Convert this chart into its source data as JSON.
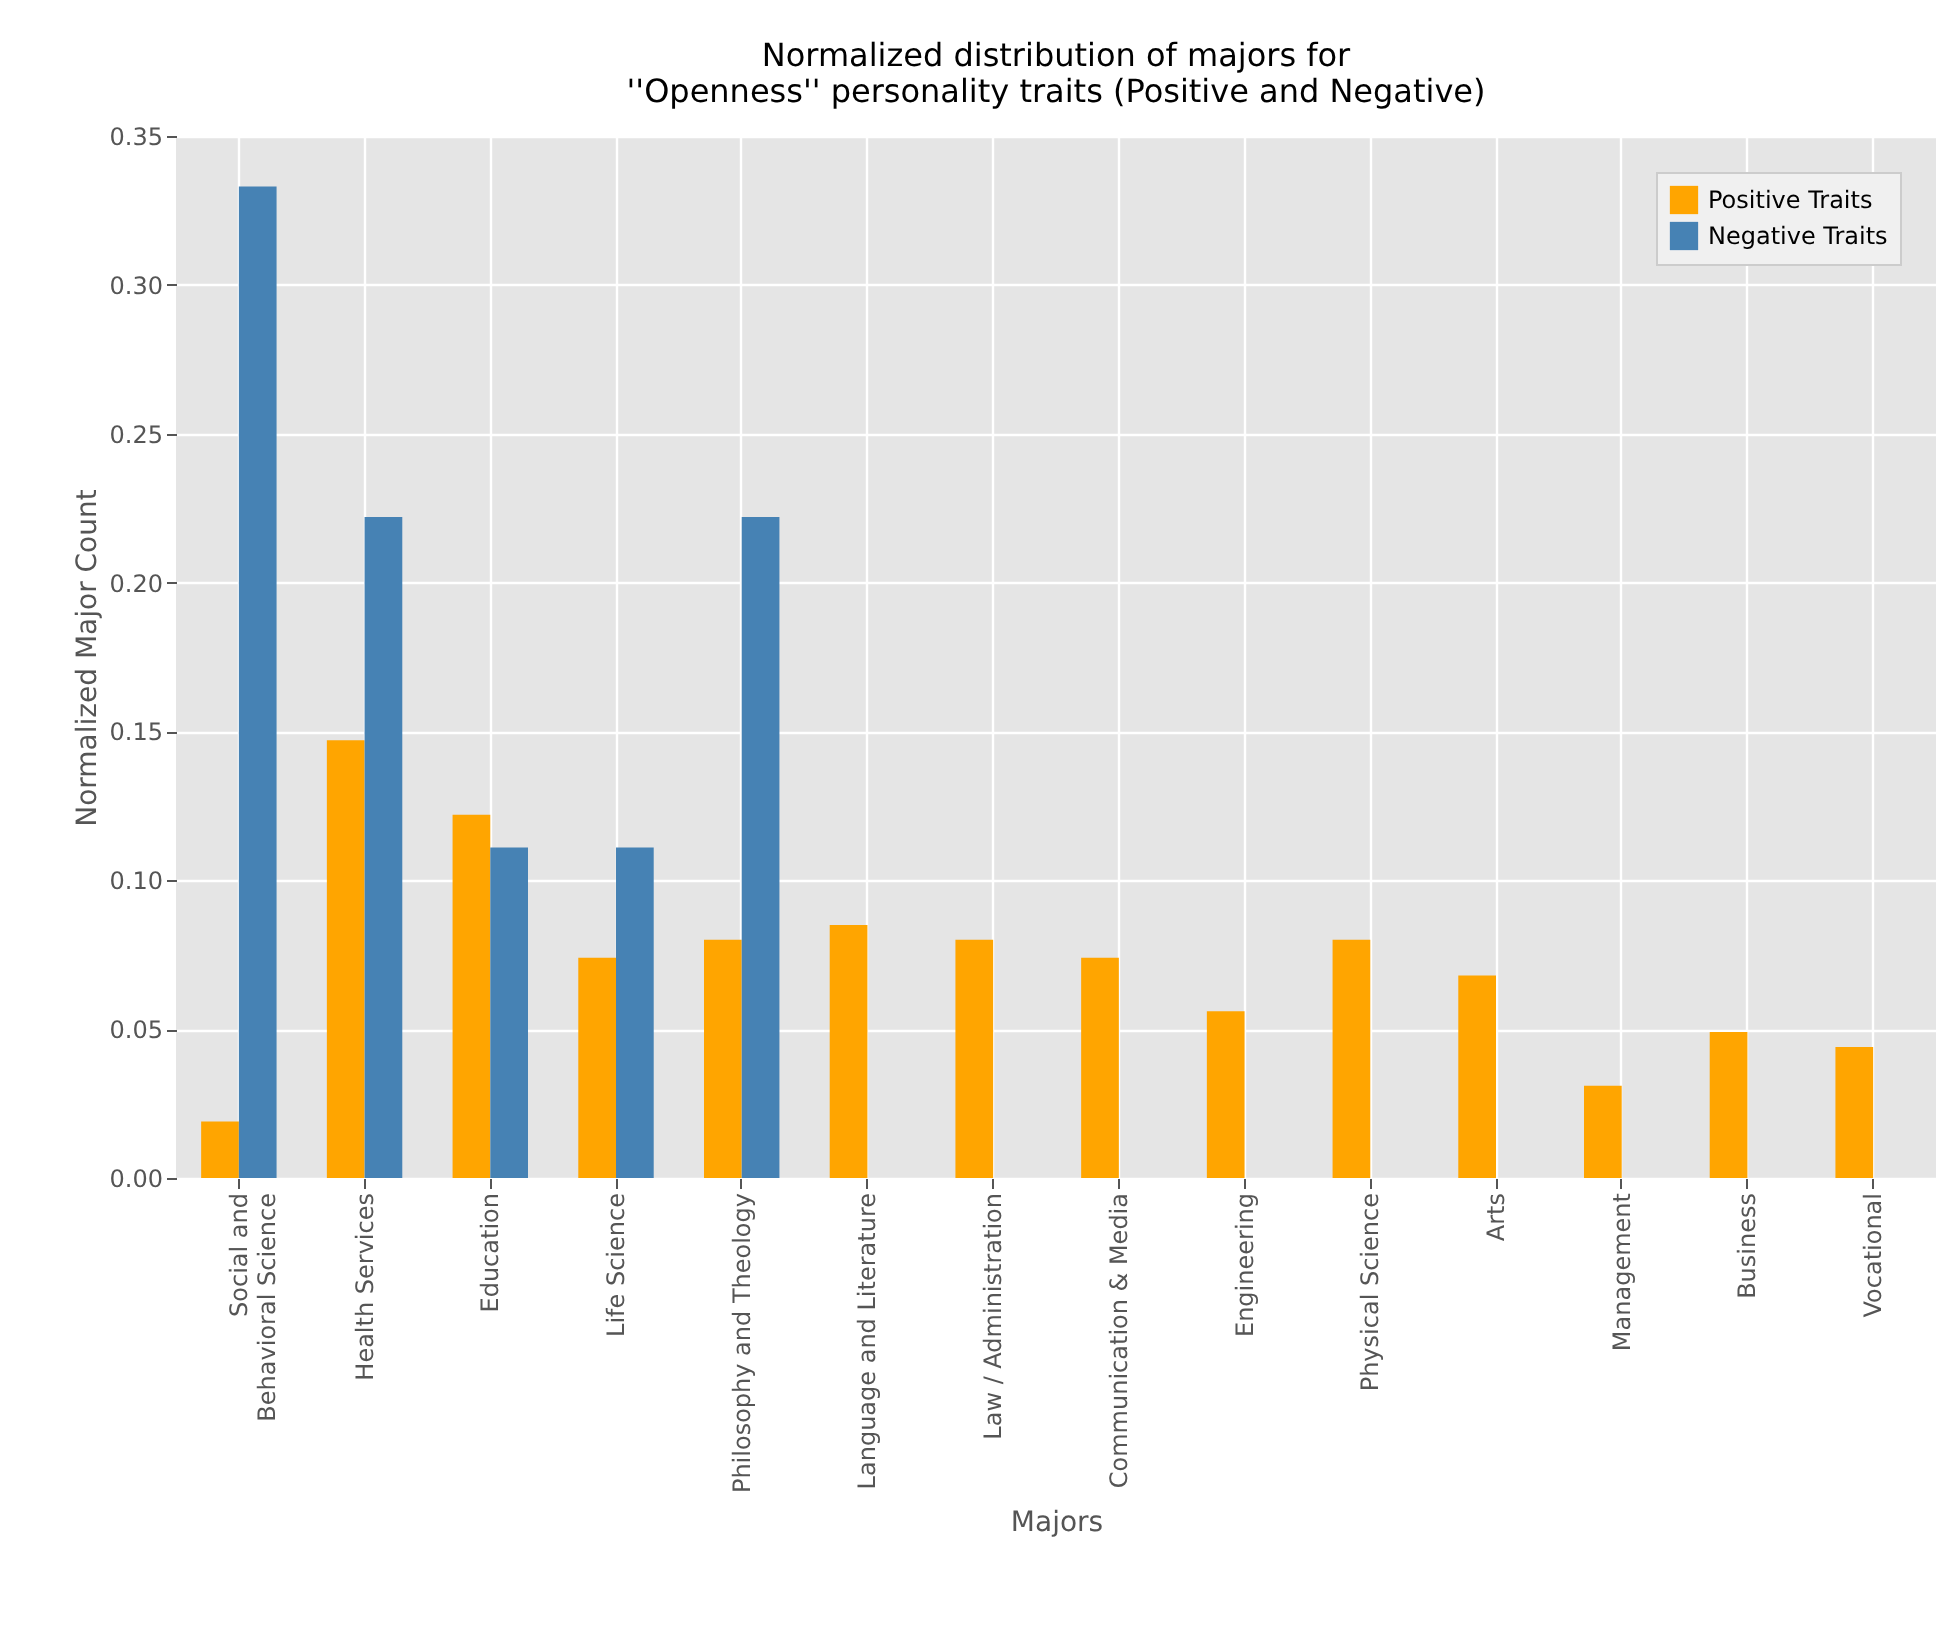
{
  "chart_data": {
    "type": "bar",
    "title": "Normalized distribution of majors for\n''Openness'' personality traits (Positive and Negative)",
    "xlabel": "Majors",
    "ylabel": "Normalized Major Count",
    "categories": [
      "Social and\nBehavioral Science",
      "Health Services",
      "Education",
      "Life Science",
      "Philosophy and Theology",
      "Language and Literature",
      "Law / Administration",
      "Communication & Media",
      "Engineering",
      "Physical Science",
      "Arts",
      "Management",
      "Business",
      "Vocational"
    ],
    "series": [
      {
        "name": "Positive Traits",
        "color": "#ffa500",
        "values": [
          0.019,
          0.147,
          0.122,
          0.074,
          0.08,
          0.085,
          0.08,
          0.074,
          0.056,
          0.08,
          0.068,
          0.031,
          0.049,
          0.044
        ]
      },
      {
        "name": "Negative Traits",
        "color": "#4682b4",
        "values": [
          0.333,
          0.222,
          0.111,
          0.111,
          0.222,
          0,
          0,
          0,
          0,
          0,
          0,
          0,
          0,
          0
        ]
      }
    ],
    "ylim": [
      0,
      0.35
    ],
    "yticks": [
      {
        "value": 0,
        "label": "0.00"
      },
      0.05,
      {
        "value": 0.1,
        "label": "0.10"
      },
      0.15,
      {
        "value": 0.2,
        "label": "0.20"
      },
      0.25,
      {
        "value": 0.3,
        "label": "0.30"
      },
      0.35
    ],
    "grid": true,
    "legend": "top right"
  }
}
